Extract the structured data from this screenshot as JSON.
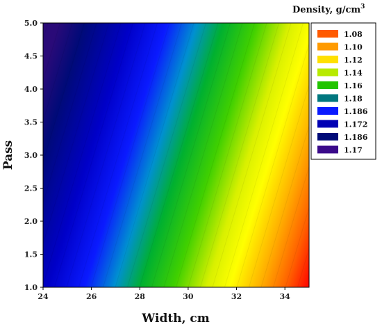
{
  "chart_data": {
    "type": "heatmap",
    "subtype": "filled-contour",
    "xlabel": "Width, cm",
    "ylabel": "Pass",
    "xlim": [
      24,
      35
    ],
    "ylim": [
      1.0,
      5.0
    ],
    "x_ticks": [
      "24",
      "26",
      "28",
      "30",
      "32",
      "34"
    ],
    "y_ticks": [
      "1.0",
      "1.5",
      "2.0",
      "2.5",
      "3.0",
      "3.5",
      "4.0",
      "4.5",
      "5.0"
    ],
    "legend": {
      "title_main": "Density, g/cm",
      "title_sup": "3",
      "placement": "right",
      "entries": [
        {
          "label": "1.08",
          "color": "#ff5a00"
        },
        {
          "label": "1.10",
          "color": "#ff9a00"
        },
        {
          "label": "1.12",
          "color": "#ffe000"
        },
        {
          "label": "1.14",
          "color": "#b8ea00"
        },
        {
          "label": "1.16",
          "color": "#22c400"
        },
        {
          "label": "1.18",
          "color": "#00777f"
        },
        {
          "label": "1.186",
          "color": "#0a1aff"
        },
        {
          "label": "1.172",
          "color": "#0000b4"
        },
        {
          "label": "1.186",
          "color": "#000a78"
        },
        {
          "label": "1.17",
          "color": "#3a0a8a"
        }
      ]
    },
    "field": {
      "description_values": "density decreases toward bottom-right; highest (dark) at top-left",
      "corners": {
        "x24_y5": "1.17",
        "x35_y1": "1.08"
      }
    },
    "grid": false
  }
}
